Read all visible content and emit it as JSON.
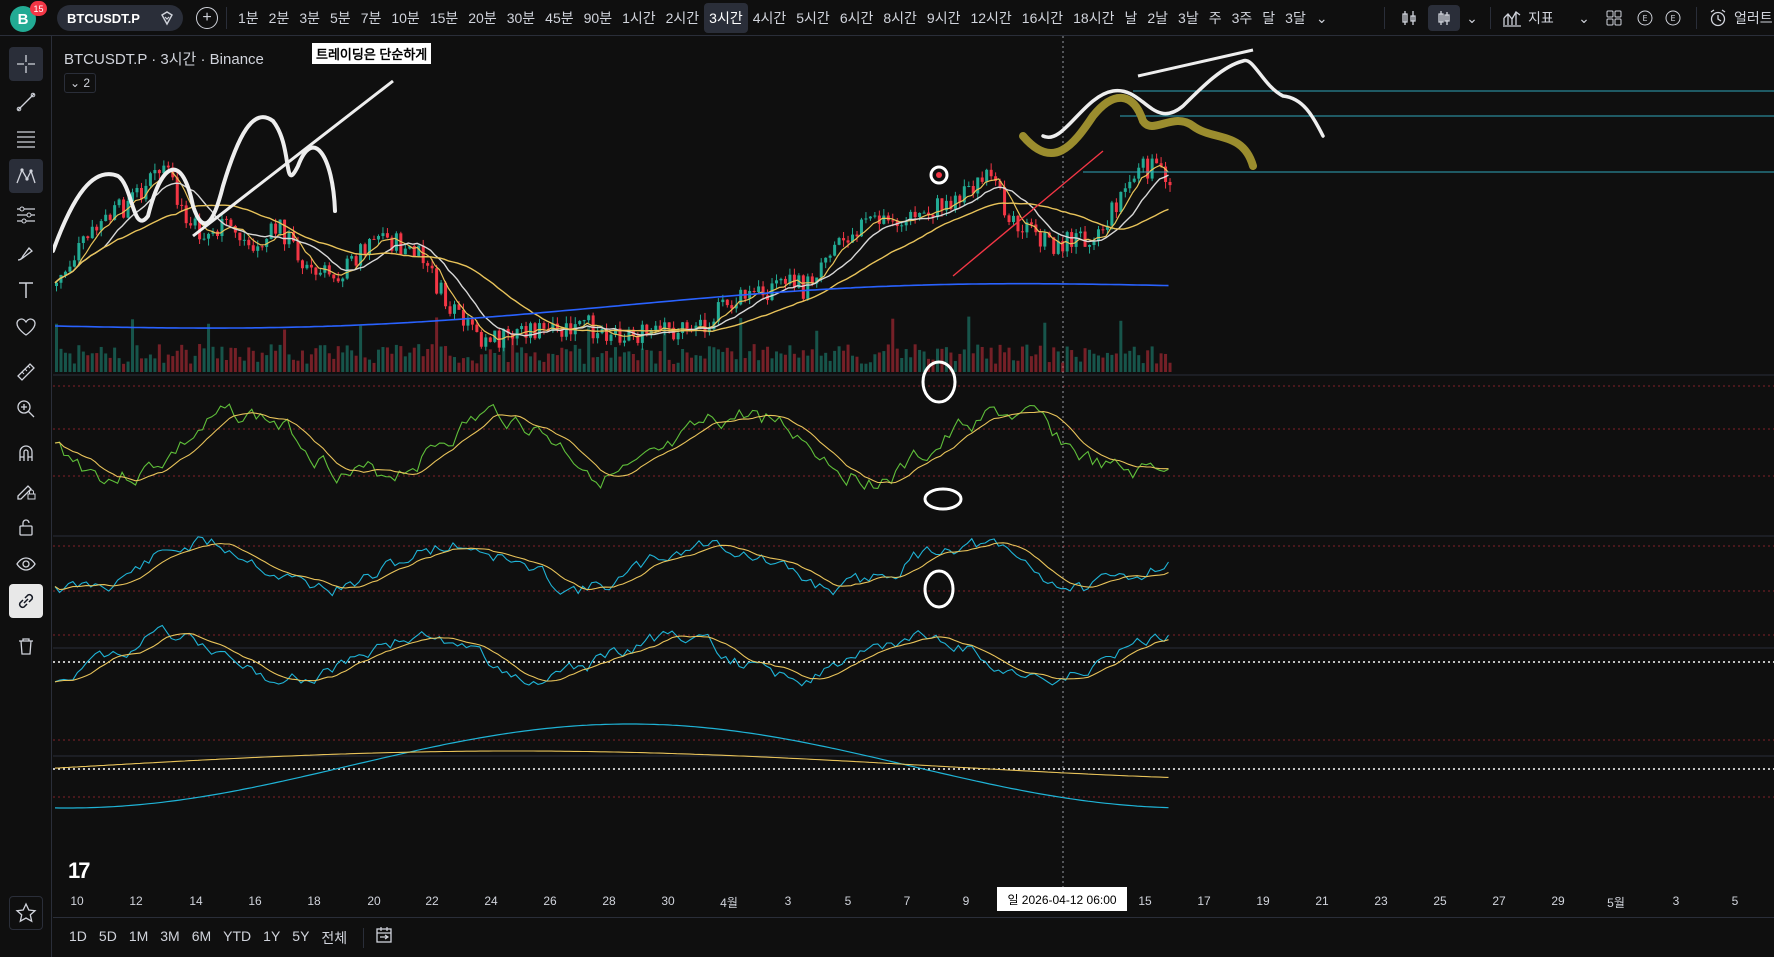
{
  "app": {
    "logo_letter": "B",
    "notification_count": "15",
    "symbol": "BTCUSDT.P"
  },
  "intervals": [
    "1분",
    "2분",
    "3분",
    "5분",
    "7분",
    "10분",
    "15분",
    "20분",
    "30분",
    "45분",
    "90분",
    "1시간",
    "2시간",
    "3시간",
    "4시간",
    "5시간",
    "6시간",
    "8시간",
    "9시간",
    "12시간",
    "16시간",
    "18시간",
    "날",
    "2날",
    "3날",
    "주",
    "3주",
    "달",
    "3달"
  ],
  "active_interval": "3시간",
  "toolbar": {
    "indicators_label": "지표",
    "alert_label": "얼러트"
  },
  "chart": {
    "legend": "BTCUSDT.P · 3시간 · Binance",
    "note_text": "트레이딩은 단순하게",
    "collapse_count": "2",
    "crosshair_time": "일 2026-04-12   06:00",
    "tv_logo": "17"
  },
  "xaxis_ticks": [
    "10",
    "12",
    "14",
    "16",
    "18",
    "20",
    "22",
    "24",
    "26",
    "28",
    "30",
    "4월",
    "3",
    "5",
    "7",
    "9",
    "15",
    "17",
    "19",
    "21",
    "23",
    "25",
    "27",
    "29",
    "5월",
    "3",
    "5"
  ],
  "ranges": [
    "1D",
    "5D",
    "1M",
    "3M",
    "6M",
    "YTD",
    "1Y",
    "5Y",
    "전체"
  ],
  "left_tools": [
    "crosshair-icon",
    "trend-line-icon",
    "fib-icon",
    "pattern-icon",
    "prediction-icon",
    "brush-icon",
    "text-icon",
    "heart-icon",
    "ruler-icon",
    "zoom-icon",
    "magnet-icon",
    "lock-drawing-icon",
    "lock-icon",
    "eye-icon",
    "link-icon",
    "trash-icon",
    "star-icon"
  ],
  "colors": {
    "background": "#0f0f0f",
    "up": "#22ab94",
    "down": "#f23645",
    "ma_white": "#d8d8d8",
    "ma_yellow": "#e8c35a",
    "ma_blue": "#2962ff",
    "osc_green": "#5fbf3a",
    "osc_cyan": "#1fb3d6",
    "level_line": "#2fa6b8"
  }
}
